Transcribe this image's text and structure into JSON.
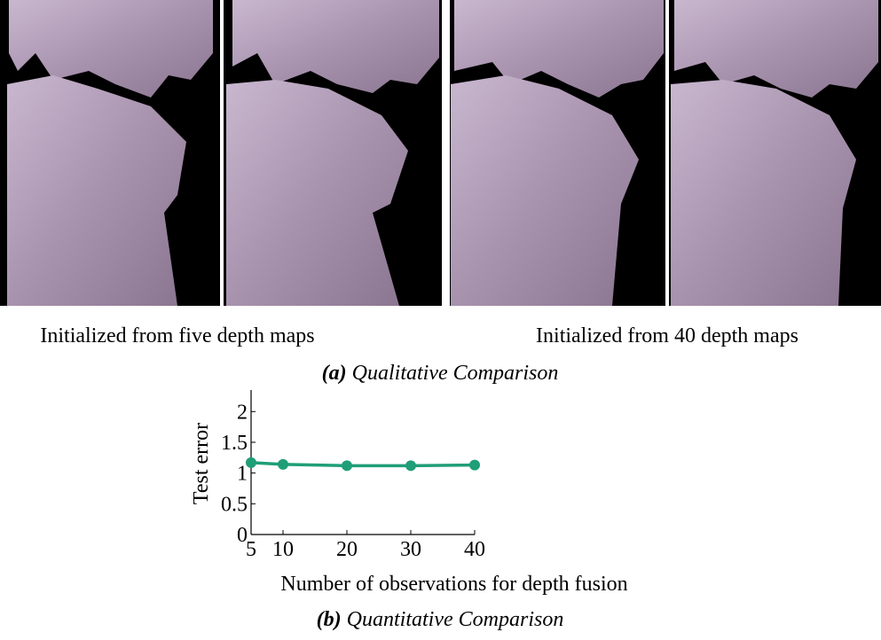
{
  "panel_a": {
    "captions": [
      "Initialized from five depth maps",
      "Initialized from 40 depth maps"
    ],
    "label": "(a)",
    "title": "Qualitative Comparison"
  },
  "panel_b": {
    "label": "(b)",
    "title": "Quantitative Comparison"
  },
  "chart_data": {
    "type": "line",
    "x_label": "Number of observations for depth fusion",
    "y_label": "Test error",
    "x": [
      5,
      10,
      20,
      30,
      40
    ],
    "series": [
      {
        "name": "Test error",
        "color": "#1f9e77",
        "values": [
          1.17,
          1.14,
          1.12,
          1.12,
          1.13
        ]
      }
    ],
    "xlim": [
      5,
      40
    ],
    "xticks": [
      5,
      10,
      20,
      30,
      40
    ],
    "ylim": [
      0,
      2.35
    ],
    "yticks": [
      0,
      0.5,
      1,
      1.5,
      2
    ]
  }
}
